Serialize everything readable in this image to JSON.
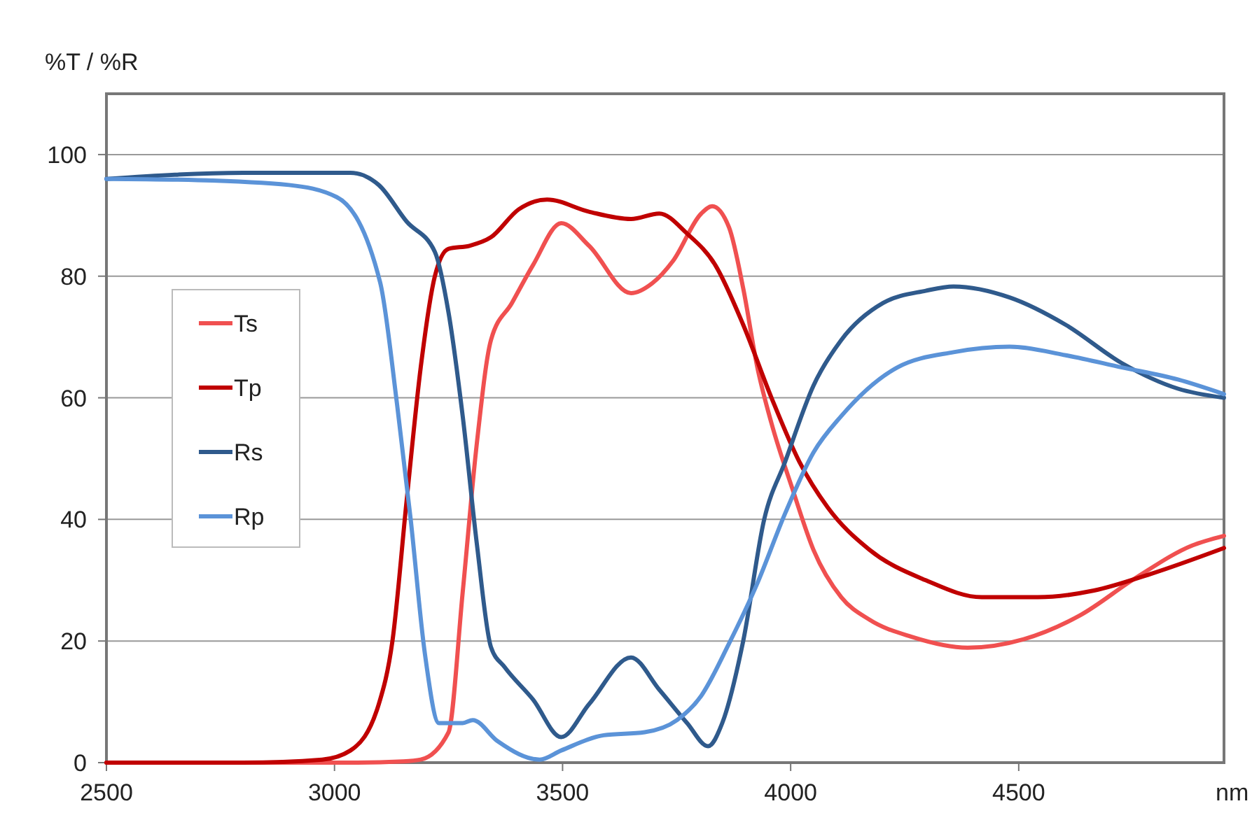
{
  "chart_data": {
    "type": "line",
    "ylabel": "%T / %R",
    "xlabel": "nm",
    "xlim": [
      2500,
      4950
    ],
    "ylim": [
      0,
      110
    ],
    "xticks": [
      2500,
      3000,
      3500,
      4000,
      4500
    ],
    "yticks": [
      0,
      20,
      40,
      60,
      80,
      100
    ],
    "grid": "y",
    "legend": "left",
    "marker": "none",
    "line_style": "solid",
    "series": [
      {
        "name": "Ts",
        "color": "#f05050",
        "x": [
          2500,
          2800,
          3050,
          3150,
          3189,
          3250,
          3281,
          3312,
          3343,
          3389,
          3435,
          3497,
          3558,
          3650,
          3696,
          3742,
          3804,
          3828,
          3865,
          3896,
          3927,
          3958,
          4004,
          4050,
          4111,
          4173,
          4265,
          4388,
          4511,
          4634,
          4757,
          4880,
          4950
        ],
        "values": [
          0,
          0,
          0,
          0.2,
          0.5,
          5,
          28,
          52.5,
          69.5,
          75.6,
          81.8,
          88.7,
          85,
          77.2,
          78.8,
          82.5,
          90.3,
          91.5,
          88,
          78,
          65,
          55.8,
          45,
          35,
          27.2,
          23.5,
          20.7,
          18.9,
          20.3,
          24.2,
          30.4,
          35.7,
          37.3
        ]
      },
      {
        "name": "Tp",
        "color": "#c00000",
        "x": [
          2500,
          2800,
          2973,
          3035,
          3097,
          3127,
          3158,
          3189,
          3220,
          3250,
          3296,
          3343,
          3404,
          3466,
          3558,
          3650,
          3712,
          3773,
          3835,
          3896,
          3958,
          4019,
          4081,
          4173,
          4296,
          4419,
          4542,
          4665,
          4788,
          4950
        ],
        "values": [
          0,
          0,
          0.5,
          2,
          9.6,
          20,
          43,
          65,
          80,
          84.5,
          85,
          86.4,
          91,
          92.6,
          90.6,
          89.4,
          90.3,
          87,
          81.8,
          72,
          60,
          49.5,
          42,
          35,
          30,
          27.2,
          27.2,
          28.3,
          31,
          35.3
        ]
      },
      {
        "name": "Rs",
        "color": "#2f5a8c",
        "x": [
          2500,
          2800,
          3035,
          3097,
          3158,
          3220,
          3250,
          3281,
          3312,
          3343,
          3373,
          3435,
          3497,
          3558,
          3650,
          3712,
          3773,
          3819,
          3850,
          3896,
          3942,
          3988,
          4050,
          4111,
          4203,
          4296,
          4357,
          4480,
          4603,
          4726,
          4849,
          4950
        ],
        "values": [
          96,
          97,
          97,
          95,
          89,
          84,
          74,
          57,
          36,
          19,
          15.7,
          10.4,
          4.2,
          9.6,
          17.3,
          12,
          6.5,
          2.7,
          6.5,
          20,
          40,
          49.5,
          62,
          69.5,
          75.6,
          77.6,
          78.3,
          76.5,
          72,
          65.7,
          61.5,
          60
        ]
      },
      {
        "name": "Rp",
        "color": "#5b93d8",
        "x": [
          2500,
          2700,
          2900,
          3005,
          3100,
          3137,
          3167,
          3198,
          3229,
          3281,
          3303,
          3358,
          3450,
          3497,
          3590,
          3680,
          3751,
          3804,
          3865,
          3927,
          3988,
          4050,
          4111,
          4234,
          4357,
          4480,
          4603,
          4726,
          4849,
          4950
        ],
        "values": [
          96,
          95.8,
          95,
          93,
          79,
          59,
          40,
          18,
          6.5,
          6.5,
          7,
          3.5,
          0.5,
          2,
          4.5,
          5,
          7,
          11,
          19.6,
          29.5,
          41,
          51,
          57,
          65,
          67.5,
          68.4,
          67,
          65,
          63,
          60.6
        ]
      }
    ]
  }
}
